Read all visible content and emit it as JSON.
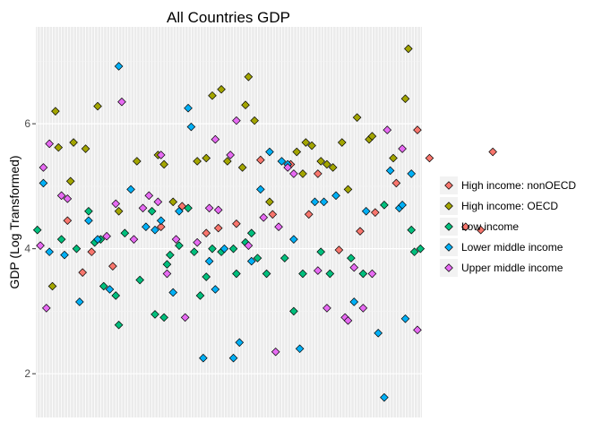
{
  "chart_data": {
    "type": "scatter",
    "title": "All Countries GDP",
    "xlabel": "",
    "ylabel": "GDP (Log Transformed)",
    "x_axis": "categorical",
    "x_tick_labels": "none",
    "ylim": [
      1.3,
      7.55
    ],
    "y_ticks": [
      2,
      4,
      6
    ],
    "grid": true,
    "legend_position": "right",
    "series": [
      {
        "name": "High income: nonOECD",
        "color": "#F8766D",
        "points": [
          [
            11,
            4.45
          ],
          [
            16,
            3.62
          ],
          [
            19,
            3.95
          ],
          [
            26,
            3.72
          ],
          [
            42,
            4.35
          ],
          [
            49,
            4.68
          ],
          [
            57,
            4.25
          ],
          [
            61,
            4.33
          ],
          [
            67,
            4.4
          ],
          [
            75,
            5.42
          ],
          [
            79,
            4.55
          ],
          [
            85,
            5.35
          ],
          [
            91,
            4.55
          ],
          [
            94,
            5.2
          ],
          [
            101,
            3.98
          ],
          [
            108,
            4.28
          ],
          [
            113,
            4.58
          ],
          [
            120,
            5.05
          ],
          [
            127,
            5.9
          ],
          [
            131,
            5.45
          ],
          [
            138,
            4.75
          ],
          [
            143,
            4.35
          ],
          [
            148,
            4.3
          ],
          [
            152,
            5.55
          ]
        ]
      },
      {
        "name": "High income: OECD",
        "color": "#A3A500",
        "points": [
          [
            6,
            3.4
          ],
          [
            7,
            6.2
          ],
          [
            8,
            5.62
          ],
          [
            12,
            5.08
          ],
          [
            13,
            5.7
          ],
          [
            17,
            5.6
          ],
          [
            21,
            6.28
          ],
          [
            28,
            4.6
          ],
          [
            34,
            5.4
          ],
          [
            41,
            5.5
          ],
          [
            43,
            5.35
          ],
          [
            46,
            4.75
          ],
          [
            54,
            5.4
          ],
          [
            57,
            5.45
          ],
          [
            59,
            6.45
          ],
          [
            62,
            6.55
          ],
          [
            64,
            5.4
          ],
          [
            69,
            5.3
          ],
          [
            70,
            6.3
          ],
          [
            71,
            6.75
          ],
          [
            73,
            6.05
          ],
          [
            78,
            4.75
          ],
          [
            87,
            5.55
          ],
          [
            89,
            5.2
          ],
          [
            90,
            5.7
          ],
          [
            92,
            5.65
          ],
          [
            95,
            5.4
          ],
          [
            97,
            5.35
          ],
          [
            99,
            5.3
          ],
          [
            102,
            5.7
          ],
          [
            104,
            4.95
          ],
          [
            107,
            6.1
          ],
          [
            111,
            5.75
          ],
          [
            112,
            5.8
          ],
          [
            119,
            5.45
          ],
          [
            123,
            6.4
          ],
          [
            124,
            7.2
          ]
        ]
      },
      {
        "name": "Low income",
        "color": "#00BF7D",
        "points": [
          [
            1,
            4.3
          ],
          [
            9,
            4.15
          ],
          [
            14,
            4.0
          ],
          [
            18,
            4.6
          ],
          [
            20,
            4.1
          ],
          [
            22,
            4.15
          ],
          [
            23,
            3.4
          ],
          [
            27,
            3.25
          ],
          [
            28,
            2.78
          ],
          [
            30,
            4.25
          ],
          [
            35,
            3.5
          ],
          [
            39,
            4.6
          ],
          [
            40,
            2.95
          ],
          [
            43,
            2.9
          ],
          [
            44,
            3.75
          ],
          [
            45,
            3.9
          ],
          [
            48,
            4.05
          ],
          [
            51,
            4.65
          ],
          [
            53,
            3.95
          ],
          [
            55,
            3.25
          ],
          [
            57,
            3.55
          ],
          [
            59,
            4.0
          ],
          [
            62,
            3.95
          ],
          [
            66,
            4.0
          ],
          [
            67,
            3.6
          ],
          [
            70,
            4.1
          ],
          [
            72,
            4.25
          ],
          [
            74,
            3.85
          ],
          [
            77,
            3.6
          ],
          [
            83,
            3.85
          ],
          [
            86,
            3.0
          ],
          [
            89,
            3.6
          ],
          [
            95,
            3.95
          ],
          [
            98,
            3.6
          ],
          [
            105,
            3.85
          ],
          [
            109,
            3.6
          ],
          [
            116,
            4.7
          ],
          [
            126,
            3.95
          ],
          [
            128,
            4.0
          ],
          [
            125,
            4.3
          ]
        ]
      },
      {
        "name": "Lower middle income",
        "color": "#00B0F6",
        "points": [
          [
            3,
            5.05
          ],
          [
            5,
            3.95
          ],
          [
            10,
            3.9
          ],
          [
            15,
            3.15
          ],
          [
            18,
            4.45
          ],
          [
            21,
            4.15
          ],
          [
            25,
            3.35
          ],
          [
            28,
            6.92
          ],
          [
            32,
            4.95
          ],
          [
            37,
            4.35
          ],
          [
            40,
            4.3
          ],
          [
            42,
            4.45
          ],
          [
            46,
            3.3
          ],
          [
            48,
            4.6
          ],
          [
            51,
            6.25
          ],
          [
            52,
            5.95
          ],
          [
            56,
            2.25
          ],
          [
            58,
            3.8
          ],
          [
            60,
            3.35
          ],
          [
            63,
            4.0
          ],
          [
            66,
            2.25
          ],
          [
            68,
            2.5
          ],
          [
            72,
            3.8
          ],
          [
            75,
            4.95
          ],
          [
            78,
            5.55
          ],
          [
            82,
            5.4
          ],
          [
            84,
            5.35
          ],
          [
            86,
            4.15
          ],
          [
            88,
            2.4
          ],
          [
            93,
            4.75
          ],
          [
            96,
            4.75
          ],
          [
            100,
            4.85
          ],
          [
            106,
            3.15
          ],
          [
            110,
            4.6
          ],
          [
            114,
            2.65
          ],
          [
            116,
            1.62
          ],
          [
            118,
            5.25
          ],
          [
            121,
            4.65
          ],
          [
            122,
            4.7
          ],
          [
            125,
            5.2
          ],
          [
            123,
            2.88
          ]
        ]
      },
      {
        "name": "Upper middle income",
        "color": "#E76BF3",
        "points": [
          [
            2,
            4.05
          ],
          [
            3,
            5.3
          ],
          [
            4,
            3.05
          ],
          [
            5,
            5.68
          ],
          [
            9,
            4.85
          ],
          [
            11,
            4.8
          ],
          [
            24,
            4.2
          ],
          [
            27,
            4.72
          ],
          [
            29,
            6.35
          ],
          [
            33,
            4.15
          ],
          [
            36,
            4.65
          ],
          [
            38,
            4.85
          ],
          [
            41,
            4.75
          ],
          [
            42,
            5.5
          ],
          [
            44,
            3.6
          ],
          [
            47,
            4.15
          ],
          [
            50,
            2.9
          ],
          [
            54,
            4.1
          ],
          [
            58,
            4.65
          ],
          [
            60,
            5.75
          ],
          [
            61,
            4.62
          ],
          [
            65,
            5.5
          ],
          [
            67,
            6.05
          ],
          [
            71,
            4.05
          ],
          [
            76,
            4.5
          ],
          [
            81,
            4.35
          ],
          [
            80,
            2.35
          ],
          [
            84,
            5.3
          ],
          [
            86,
            5.2
          ],
          [
            94,
            3.65
          ],
          [
            97,
            3.05
          ],
          [
            103,
            2.9
          ],
          [
            104,
            2.85
          ],
          [
            106,
            3.7
          ],
          [
            109,
            3.05
          ],
          [
            112,
            3.6
          ],
          [
            117,
            5.9
          ],
          [
            122,
            5.6
          ],
          [
            127,
            2.7
          ]
        ]
      }
    ]
  }
}
